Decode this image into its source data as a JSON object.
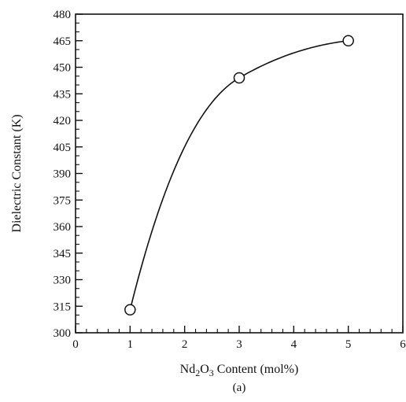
{
  "chart_data": {
    "type": "line",
    "x": [
      1,
      3,
      5
    ],
    "series": [
      {
        "values": [
          313,
          444,
          465
        ],
        "markers": "open-circle",
        "smooth": true
      }
    ],
    "xlabel": "Nd2O3 Content (mol%)",
    "xlabel_parts": {
      "pre": "Nd",
      "sub1": "2",
      "mid": "O",
      "sub2": "3",
      "post": " Content (mol%)"
    },
    "ylabel": "Dielectric Constant (K)",
    "xlim": [
      0,
      6
    ],
    "ylim": [
      300,
      480
    ],
    "xticks": [
      0,
      1,
      2,
      3,
      4,
      5,
      6
    ],
    "yticks": [
      300,
      315,
      330,
      345,
      360,
      375,
      390,
      405,
      420,
      435,
      450,
      465,
      480
    ],
    "panel_label": "(a)",
    "grid": false,
    "line_color": "#111111"
  }
}
